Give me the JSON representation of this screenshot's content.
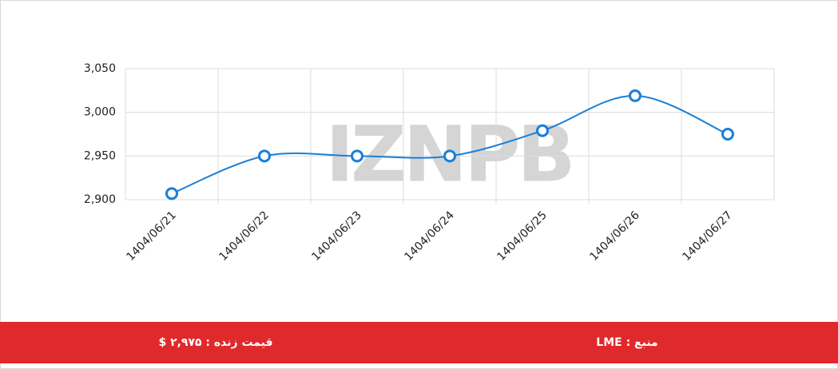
{
  "chart_data": {
    "type": "line",
    "watermark": "IZNPB",
    "categories": [
      "1404/06/21",
      "1404/06/22",
      "1404/06/23",
      "1404/06/24",
      "1404/06/25",
      "1404/06/26",
      "1404/06/27"
    ],
    "series": [
      {
        "name": "LME",
        "color": "#1a7fd6",
        "values": [
          2907,
          2950,
          2950,
          2950,
          2979,
          3019,
          2975
        ]
      }
    ],
    "ylim": [
      2900,
      3050
    ],
    "yticks": [
      {
        "value": 2900,
        "label": "2,900"
      },
      {
        "value": 2950,
        "label": "2,950"
      },
      {
        "value": 3000,
        "label": "3,000"
      },
      {
        "value": 3050,
        "label": "3,050"
      }
    ],
    "grid": true
  },
  "footer": {
    "price": "قیمت زنده : ۲,۹۷۵ $",
    "source": "منبع : LME"
  }
}
